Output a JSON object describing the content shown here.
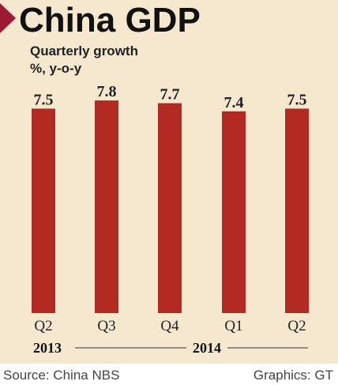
{
  "chart_data": {
    "type": "bar",
    "title": "China GDP",
    "subtitle_line1": "Quarterly growth",
    "subtitle_line2": "%, y-o-y",
    "categories": [
      "Q2",
      "Q3",
      "Q4",
      "Q1",
      "Q2"
    ],
    "values": [
      7.5,
      7.8,
      7.7,
      7.4,
      7.5
    ],
    "value_labels": [
      "7.5",
      "7.8",
      "7.7",
      "7.4",
      "7.5"
    ],
    "years": [
      {
        "label": "2013",
        "span": [
          0,
          0
        ]
      },
      {
        "label": "2014",
        "span": [
          1,
          4
        ]
      }
    ],
    "ylim": [
      0,
      8.15
    ],
    "grid": false,
    "legend": "none"
  },
  "colors": {
    "bar": "#b32a22",
    "accent_triangle": "#9c1b33",
    "panel_background": "#f6e8cf"
  },
  "footer": {
    "source": "Source: China NBS",
    "credit": "Graphics: GT"
  }
}
